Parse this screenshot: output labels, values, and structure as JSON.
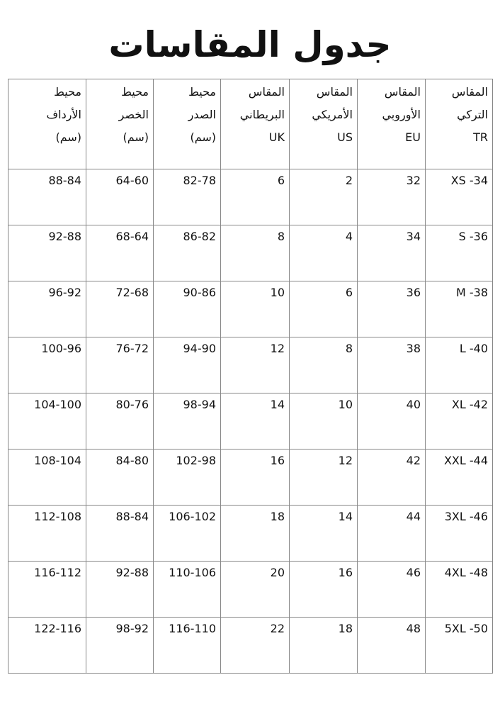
{
  "title": "جدول المقاسات",
  "headers": [
    {
      "line1": "المقاس",
      "line2": "التركي",
      "line3": "TR"
    },
    {
      "line1": "المقاس",
      "line2": "الأوروبي",
      "line3": "EU"
    },
    {
      "line1": "المقاس",
      "line2": "الأمريكي",
      "line3": "US"
    },
    {
      "line1": "المقاس",
      "line2": "البريطاني",
      "line3": "UK"
    },
    {
      "line1": "محيط",
      "line2": "الصدر",
      "line3": "(سم)"
    },
    {
      "line1": "محيط",
      "line2": "الخصر",
      "line3": "(سم)"
    },
    {
      "line1": "محيط",
      "line2": "الأرداف",
      "line3": "(سم)"
    }
  ],
  "rows": [
    [
      "XS -34",
      "32",
      "2",
      "6",
      "82-78",
      "64-60",
      "88-84"
    ],
    [
      "S -36",
      "34",
      "4",
      "8",
      "86-82",
      "68-64",
      "92-88"
    ],
    [
      "M -38",
      "36",
      "6",
      "10",
      "90-86",
      "72-68",
      "96-92"
    ],
    [
      "L -40",
      "38",
      "8",
      "12",
      "94-90",
      "76-72",
      "100-96"
    ],
    [
      "XL -42",
      "40",
      "10",
      "14",
      "98-94",
      "80-76",
      "104-100"
    ],
    [
      "XXL -44",
      "42",
      "12",
      "16",
      "102-98",
      "84-80",
      "108-104"
    ],
    [
      "3XL -46",
      "44",
      "14",
      "18",
      "106-102",
      "88-84",
      "112-108"
    ],
    [
      "4XL -48",
      "46",
      "16",
      "20",
      "110-106",
      "92-88",
      "116-112"
    ],
    [
      "5XL -50",
      "48",
      "18",
      "22",
      "116-110",
      "98-92",
      "122-116"
    ]
  ]
}
